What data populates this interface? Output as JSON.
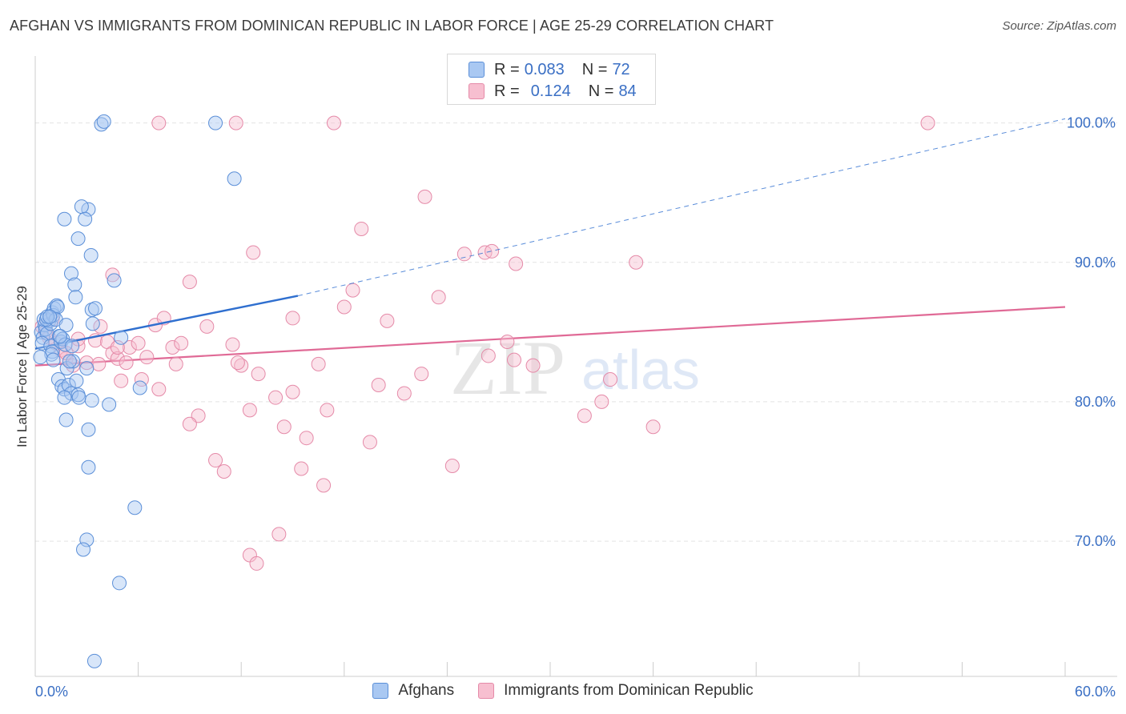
{
  "title": "AFGHAN VS IMMIGRANTS FROM DOMINICAN REPUBLIC IN LABOR FORCE | AGE 25-29 CORRELATION CHART",
  "source": "Source: ZipAtlas.com",
  "watermark": {
    "zip": "ZIP",
    "atlas": "atlas"
  },
  "legend": {
    "series": [
      {
        "r_label": "R =",
        "r_value": "0.083",
        "n_label": "N =",
        "n_value": "72"
      },
      {
        "r_label": "R =",
        "r_value": "0.124",
        "n_label": "N =",
        "n_value": "84"
      }
    ]
  },
  "bottom_legend": {
    "afghans": "Afghans",
    "dominican": "Immigrants from Dominican Republic"
  },
  "colors": {
    "afghans_fill": "#a9c8f2",
    "afghans_stroke": "#5b8fd8",
    "afghans_line": "#2f6fcf",
    "dominican_fill": "#f7bfd0",
    "dominican_stroke": "#e58aa8",
    "dominican_line": "#e06a96",
    "tick_label": "#3a6fc4",
    "grid": "#e3e3e3"
  },
  "chart_data": {
    "type": "scatter",
    "title": "AFGHAN VS IMMIGRANTS FROM DOMINICAN REPUBLIC IN LABOR FORCE | AGE 25-29 CORRELATION CHART",
    "xlabel": "",
    "ylabel": "In Labor Force | Age 25-29",
    "xlim": [
      0,
      60
    ],
    "ylim": [
      60.3,
      104.8
    ],
    "x_tick_labels": [
      "0.0%",
      "60.0%"
    ],
    "y_ticks": [
      70,
      80,
      90,
      100
    ],
    "y_tick_labels": [
      "70.0%",
      "80.0%",
      "90.0%",
      "100.0%"
    ],
    "grid": true,
    "legend_position": "top-center",
    "series": [
      {
        "name": "Afghans",
        "r": 0.083,
        "n": 72,
        "trend": {
          "x0": 0,
          "y0": 83.8,
          "x1": 15.3,
          "y1": 87.6,
          "dashed_to_x": 60,
          "dashed_to_y": 100.3
        },
        "points": [
          [
            0.35,
            85.0
          ],
          [
            0.45,
            84.6
          ],
          [
            0.55,
            85.5
          ],
          [
            0.6,
            85.2
          ],
          [
            0.7,
            84.9
          ],
          [
            0.4,
            84.2
          ],
          [
            0.8,
            85.8
          ],
          [
            0.9,
            85.6
          ],
          [
            0.5,
            85.9
          ],
          [
            0.65,
            85.9
          ],
          [
            1.0,
            86.4
          ],
          [
            1.1,
            86.7
          ],
          [
            1.05,
            86.2
          ],
          [
            1.25,
            86.9
          ],
          [
            1.3,
            86.8
          ],
          [
            1.2,
            85.9
          ],
          [
            0.9,
            84.0
          ],
          [
            1.0,
            83.6
          ],
          [
            0.95,
            83.4
          ],
          [
            1.05,
            83.0
          ],
          [
            1.4,
            84.7
          ],
          [
            1.5,
            84.3
          ],
          [
            1.6,
            84.5
          ],
          [
            1.8,
            85.5
          ],
          [
            1.75,
            84.1
          ],
          [
            1.35,
            81.6
          ],
          [
            1.55,
            81.1
          ],
          [
            1.7,
            80.9
          ],
          [
            1.85,
            82.4
          ],
          [
            1.95,
            81.2
          ],
          [
            2.1,
            80.6
          ],
          [
            2.2,
            82.9
          ],
          [
            2.4,
            81.5
          ],
          [
            2.5,
            80.5
          ],
          [
            2.55,
            80.3
          ],
          [
            3.0,
            82.4
          ],
          [
            1.7,
            80.3
          ],
          [
            1.8,
            78.7
          ],
          [
            3.3,
            80.1
          ],
          [
            4.3,
            79.8
          ],
          [
            3.1,
            78.0
          ],
          [
            3.1,
            75.3
          ],
          [
            6.1,
            81.0
          ],
          [
            5.8,
            72.4
          ],
          [
            3.0,
            70.1
          ],
          [
            2.8,
            69.4
          ],
          [
            4.9,
            67.0
          ],
          [
            3.45,
            61.4
          ],
          [
            3.3,
            86.6
          ],
          [
            3.5,
            86.7
          ],
          [
            3.1,
            93.8
          ],
          [
            2.7,
            94.0
          ],
          [
            2.9,
            93.1
          ],
          [
            1.7,
            93.1
          ],
          [
            2.5,
            91.7
          ],
          [
            3.25,
            90.5
          ],
          [
            2.1,
            89.2
          ],
          [
            2.3,
            88.4
          ],
          [
            2.35,
            87.5
          ],
          [
            4.6,
            88.7
          ],
          [
            5.0,
            84.6
          ],
          [
            3.35,
            85.6
          ],
          [
            3.85,
            99.9
          ],
          [
            4.0,
            100.1
          ],
          [
            10.5,
            100.0
          ],
          [
            11.6,
            96.0
          ],
          [
            0.3,
            83.2
          ],
          [
            2.15,
            84.0
          ],
          [
            1.45,
            84.7
          ],
          [
            2.0,
            82.9
          ],
          [
            0.7,
            86.1
          ],
          [
            0.85,
            86.1
          ]
        ]
      },
      {
        "name": "Immigrants from Dominican Republic",
        "r": 0.124,
        "n": 84,
        "trend": {
          "x0": 0,
          "y0": 82.6,
          "x1": 60,
          "y1": 86.8
        },
        "points": [
          [
            0.4,
            85.4
          ],
          [
            0.6,
            85.0
          ],
          [
            0.8,
            84.6
          ],
          [
            1.0,
            85.9
          ],
          [
            1.2,
            84.2
          ],
          [
            1.5,
            83.7
          ],
          [
            1.8,
            83.1
          ],
          [
            2.2,
            82.6
          ],
          [
            2.5,
            84.0
          ],
          [
            3.0,
            82.8
          ],
          [
            3.5,
            84.4
          ],
          [
            3.8,
            85.4
          ],
          [
            4.2,
            84.3
          ],
          [
            4.5,
            83.5
          ],
          [
            4.8,
            83.1
          ],
          [
            5.5,
            83.9
          ],
          [
            6.0,
            84.2
          ],
          [
            5.3,
            82.8
          ],
          [
            6.5,
            83.2
          ],
          [
            7.0,
            85.5
          ],
          [
            7.5,
            86.0
          ],
          [
            8.0,
            83.9
          ],
          [
            8.5,
            84.2
          ],
          [
            8.2,
            82.7
          ],
          [
            10.0,
            85.4
          ],
          [
            11.5,
            84.1
          ],
          [
            12.0,
            82.6
          ],
          [
            13.0,
            82.0
          ],
          [
            14.0,
            80.3
          ],
          [
            15.0,
            80.7
          ],
          [
            6.2,
            81.6
          ],
          [
            7.2,
            80.9
          ],
          [
            9.5,
            79.0
          ],
          [
            9.0,
            78.4
          ],
          [
            10.5,
            75.8
          ],
          [
            11.0,
            75.0
          ],
          [
            12.5,
            79.4
          ],
          [
            14.5,
            78.2
          ],
          [
            15.8,
            77.4
          ],
          [
            15.5,
            75.2
          ],
          [
            16.5,
            82.7
          ],
          [
            17.0,
            79.4
          ],
          [
            16.8,
            74.0
          ],
          [
            19.5,
            77.1
          ],
          [
            20.0,
            81.2
          ],
          [
            21.5,
            80.6
          ],
          [
            22.5,
            82.0
          ],
          [
            24.3,
            75.4
          ],
          [
            14.2,
            70.5
          ],
          [
            12.5,
            69.0
          ],
          [
            12.9,
            68.4
          ],
          [
            4.5,
            89.1
          ],
          [
            9.0,
            88.6
          ],
          [
            12.7,
            90.7
          ],
          [
            15.0,
            86.0
          ],
          [
            18.0,
            86.8
          ],
          [
            18.5,
            88.0
          ],
          [
            19.0,
            92.4
          ],
          [
            20.5,
            85.8
          ],
          [
            22.7,
            94.7
          ],
          [
            23.5,
            87.5
          ],
          [
            25.0,
            90.6
          ],
          [
            26.2,
            90.7
          ],
          [
            26.6,
            90.8
          ],
          [
            28.0,
            89.9
          ],
          [
            27.5,
            84.3
          ],
          [
            26.4,
            83.3
          ],
          [
            27.9,
            83.0
          ],
          [
            29.0,
            82.6
          ],
          [
            33.5,
            81.6
          ],
          [
            32.0,
            79.0
          ],
          [
            33.0,
            80.0
          ],
          [
            36.0,
            78.2
          ],
          [
            35.0,
            90.0
          ],
          [
            7.2,
            100.0
          ],
          [
            11.7,
            100.0
          ],
          [
            17.4,
            100.0
          ],
          [
            52.0,
            100.0
          ],
          [
            2.5,
            84.5
          ],
          [
            3.7,
            82.7
          ],
          [
            5.0,
            81.5
          ],
          [
            1.8,
            83.5
          ],
          [
            11.8,
            82.8
          ],
          [
            4.8,
            83.9
          ]
        ]
      }
    ]
  }
}
